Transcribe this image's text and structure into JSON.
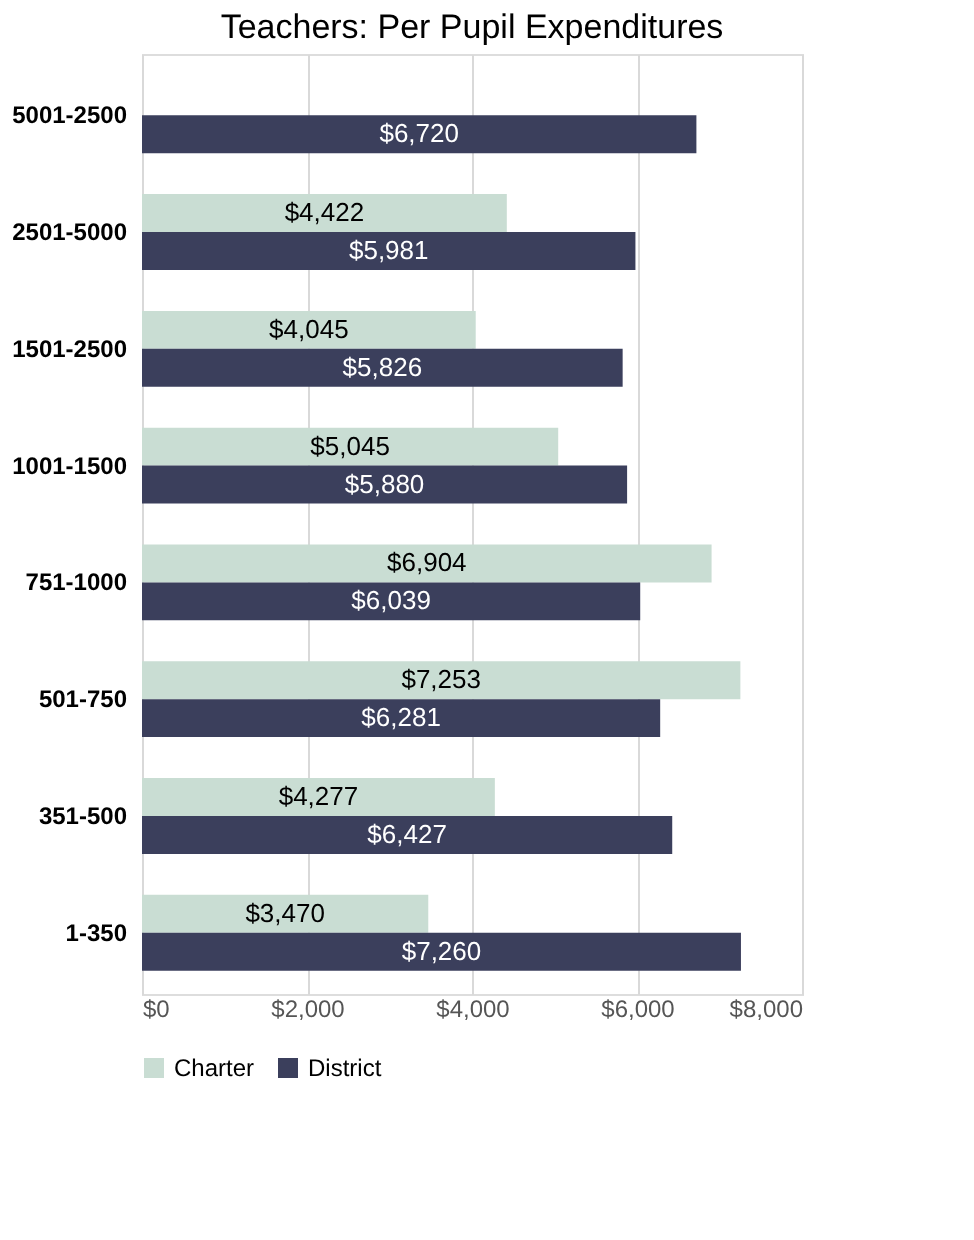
{
  "chart_data": {
    "type": "bar",
    "orientation": "horizontal",
    "title": "Teachers: Per Pupil Expenditures",
    "categories": [
      "5001-2500",
      "2501-5000",
      "1501-2500",
      "1001-1500",
      "751-1000",
      "501-750",
      "351-500",
      "1-350"
    ],
    "series": [
      {
        "name": "Charter",
        "color": "#c9ddd3",
        "values": [
          null,
          4422,
          4045,
          5045,
          6904,
          7253,
          4277,
          3470
        ],
        "value_labels": [
          null,
          "$4,422",
          "$4,045",
          "$5,045",
          "$6,904",
          "$7,253",
          "$4,277",
          "$3,470"
        ]
      },
      {
        "name": "District",
        "color": "#3b3f5c",
        "values": [
          6720,
          5981,
          5826,
          5880,
          6039,
          6281,
          6427,
          7260
        ],
        "value_labels": [
          "$6,720",
          "$5,981",
          "$5,826",
          "$5,880",
          "$6,039",
          "$6,281",
          "$6,427",
          "$7,260"
        ]
      }
    ],
    "xlim": [
      0,
      8000
    ],
    "xticks": [
      {
        "value": 0,
        "label": "$0"
      },
      {
        "value": 2000,
        "label": "$2,000"
      },
      {
        "value": 4000,
        "label": "$4,000"
      },
      {
        "value": 6000,
        "label": "$6,000"
      },
      {
        "value": 8000,
        "label": "$8,000"
      }
    ],
    "grid": "x",
    "legend": "bottom"
  }
}
